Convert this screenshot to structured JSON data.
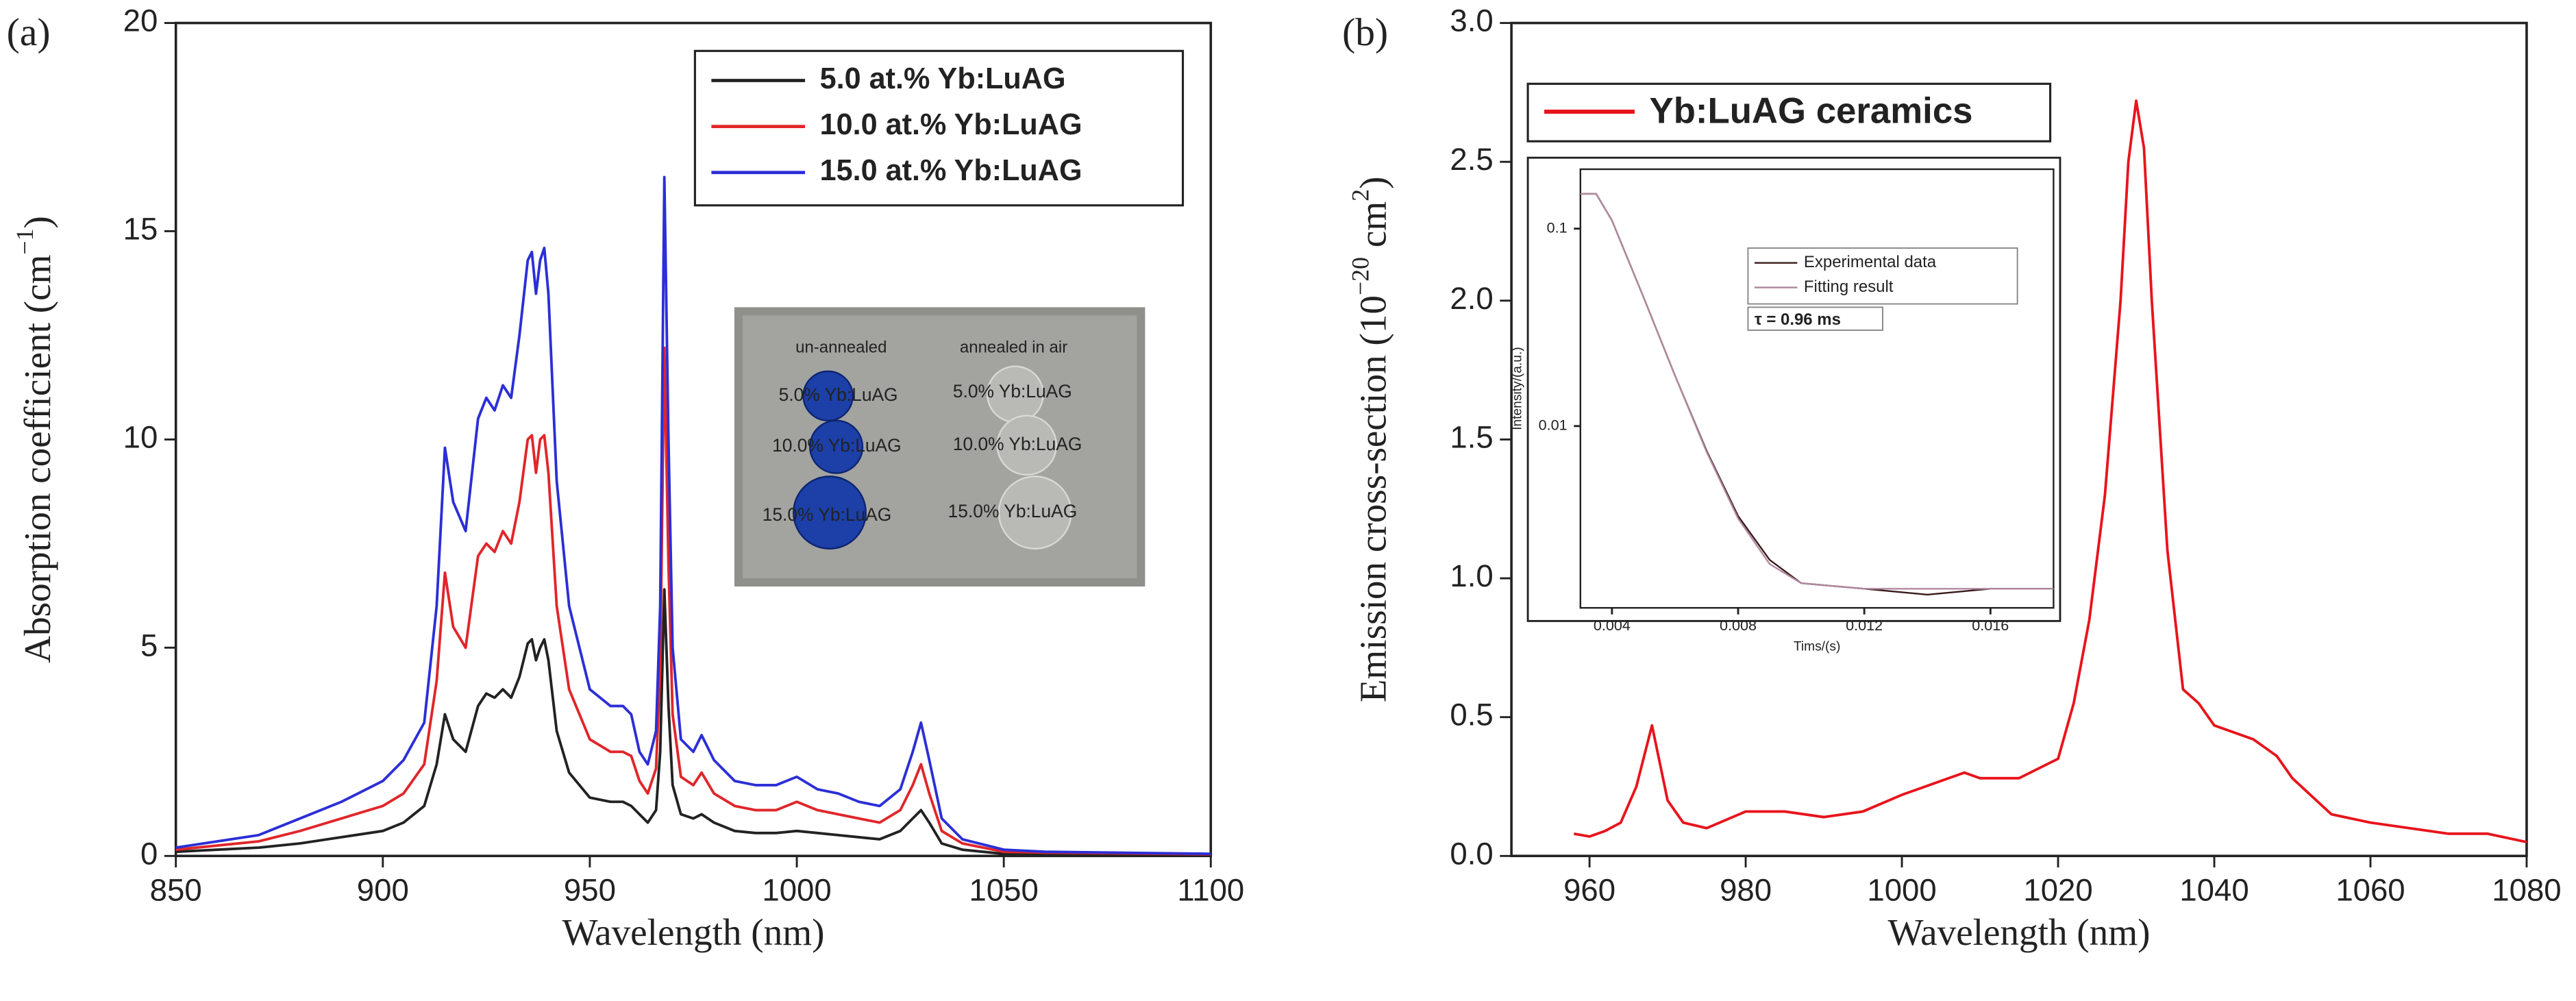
{
  "chart_data": [
    {
      "type": "line",
      "panel_label": "(a)",
      "xlabel": "Wavelength (nm)",
      "ylabel": [
        "Absorption coefficient (cm",
        "−1",
        ")"
      ],
      "xlim": [
        850,
        1100
      ],
      "xticks": [
        850,
        900,
        950,
        1000,
        1050,
        1100
      ],
      "ylim": [
        0,
        20
      ],
      "yticks": [
        0,
        5,
        10,
        15,
        20
      ],
      "legend": "upper right",
      "x": [
        850,
        870,
        880,
        890,
        900,
        905,
        910,
        913,
        915,
        917,
        920,
        923,
        925,
        927,
        929,
        931,
        933,
        935,
        936,
        937,
        938,
        939,
        940,
        942,
        945,
        950,
        955,
        958,
        960,
        962,
        964,
        966,
        967,
        968,
        969,
        970,
        972,
        975,
        977,
        980,
        985,
        990,
        995,
        1000,
        1005,
        1010,
        1015,
        1020,
        1025,
        1028,
        1030,
        1032,
        1035,
        1040,
        1050,
        1060,
        1100
      ],
      "series": [
        {
          "name": "5.0 at.% Yb:LuAG",
          "color": "#222222",
          "values": [
            0.1,
            0.2,
            0.3,
            0.45,
            0.6,
            0.8,
            1.2,
            2.2,
            3.4,
            2.8,
            2.5,
            3.6,
            3.9,
            3.8,
            4,
            3.8,
            4.3,
            5.1,
            5.2,
            4.7,
            5,
            5.2,
            4.7,
            3,
            2,
            1.4,
            1.3,
            1.3,
            1.2,
            1,
            0.8,
            1.1,
            2.5,
            6.4,
            3.6,
            1.7,
            1,
            0.9,
            1,
            0.8,
            0.6,
            0.55,
            0.55,
            0.6,
            0.55,
            0.5,
            0.45,
            0.4,
            0.6,
            0.9,
            1.1,
            0.8,
            0.3,
            0.15,
            0.05,
            0.04,
            0.02
          ]
        },
        {
          "name": "10.0 at.% Yb:LuAG",
          "color": "#e0262a",
          "values": [
            0.15,
            0.35,
            0.6,
            0.9,
            1.2,
            1.5,
            2.2,
            4.2,
            6.8,
            5.5,
            5,
            7.2,
            7.5,
            7.3,
            7.8,
            7.5,
            8.5,
            10,
            10.1,
            9.2,
            10,
            10.1,
            9.2,
            6,
            4,
            2.8,
            2.5,
            2.5,
            2.4,
            1.8,
            1.5,
            2.1,
            4.5,
            12.2,
            7,
            3.4,
            1.9,
            1.7,
            2,
            1.5,
            1.2,
            1.1,
            1.1,
            1.3,
            1.1,
            1,
            0.9,
            0.8,
            1.1,
            1.7,
            2.2,
            1.5,
            0.6,
            0.3,
            0.1,
            0.08,
            0.04
          ]
        },
        {
          "name": "15.0 at.% Yb:LuAG",
          "color": "#2b2fd6",
          "values": [
            0.2,
            0.5,
            0.9,
            1.3,
            1.8,
            2.3,
            3.2,
            6,
            9.8,
            8.5,
            7.8,
            10.5,
            11,
            10.7,
            11.3,
            11,
            12.5,
            14.3,
            14.5,
            13.5,
            14.3,
            14.6,
            13.5,
            9,
            6,
            4,
            3.6,
            3.6,
            3.4,
            2.5,
            2.2,
            3,
            6,
            16.3,
            10,
            5,
            2.8,
            2.5,
            2.9,
            2.3,
            1.8,
            1.7,
            1.7,
            1.9,
            1.6,
            1.5,
            1.3,
            1.2,
            1.6,
            2.5,
            3.2,
            2.3,
            0.9,
            0.4,
            0.15,
            0.1,
            0.05
          ]
        }
      ],
      "inset_photo": {
        "headers": [
          "un-annealed",
          "annealed in air"
        ],
        "left_labels": [
          "5.0% Yb:LuAG",
          "10.0% Yb:LuAG",
          "15.0% Yb:LuAG"
        ],
        "right_labels": [
          "5.0% Yb:LuAG",
          "10.0% Yb:LuAG",
          "15.0% Yb:LuAG"
        ]
      }
    },
    {
      "type": "line",
      "panel_label": "(b)",
      "xlabel": "Wavelength (nm)",
      "ylabel": [
        "Emission cross-section (10",
        "−20",
        " cm",
        "2",
        ")"
      ],
      "xlim": [
        950,
        1080
      ],
      "xticks": [
        960,
        980,
        1000,
        1020,
        1040,
        1060,
        1080
      ],
      "ylim": [
        0,
        3.0
      ],
      "yticks": [
        {
          "value": 0,
          "label": "0.0"
        },
        0.5,
        {
          "value": 1,
          "label": "1.0"
        },
        1.5,
        {
          "value": 2,
          "label": "2.0"
        },
        2.5,
        {
          "value": 3,
          "label": "3.0"
        }
      ],
      "legend": "upper left",
      "x": [
        958,
        960,
        962,
        964,
        966,
        968,
        970,
        972,
        975,
        980,
        985,
        990,
        995,
        1000,
        1005,
        1008,
        1010,
        1015,
        1020,
        1022,
        1024,
        1026,
        1028,
        1029,
        1030,
        1031,
        1032,
        1034,
        1036,
        1038,
        1040,
        1045,
        1048,
        1050,
        1055,
        1060,
        1065,
        1070,
        1075,
        1080
      ],
      "series": [
        {
          "name": "Yb:LuAG ceramics",
          "color": "#e8141c",
          "values": [
            0.08,
            0.07,
            0.09,
            0.12,
            0.25,
            0.47,
            0.2,
            0.12,
            0.1,
            0.16,
            0.16,
            0.14,
            0.16,
            0.22,
            0.27,
            0.3,
            0.28,
            0.28,
            0.35,
            0.55,
            0.85,
            1.3,
            2.0,
            2.5,
            2.72,
            2.55,
            2.0,
            1.1,
            0.6,
            0.55,
            0.47,
            0.42,
            0.36,
            0.28,
            0.15,
            0.12,
            0.1,
            0.08,
            0.08,
            0.05
          ]
        }
      ]
    },
    {
      "type": "line",
      "xlabel": "Tims/(s)",
      "ylabel": [
        "Intensity/(a.u.)"
      ],
      "log_y": true,
      "xlim": [
        0.003,
        0.018
      ],
      "xticks": [
        0.004,
        0.008,
        0.012,
        0.016
      ],
      "ylim": [
        0.0012,
        0.2
      ],
      "yticks": [
        0.01,
        0.1
      ],
      "legend": "upper right",
      "annotation": "τ = 0.96 ms",
      "x": [
        0.003,
        0.0035,
        0.004,
        0.005,
        0.006,
        0.007,
        0.008,
        0.009,
        0.01,
        0.012,
        0.014,
        0.016,
        0.018
      ],
      "series": [
        {
          "name": "Experimental data",
          "color": "#3a1a1a",
          "values": [
            0.15,
            0.15,
            0.11,
            0.045,
            0.018,
            0.0075,
            0.0035,
            0.0021,
            0.0016,
            0.0015,
            0.0014,
            0.0015,
            0.0015
          ]
        },
        {
          "name": "Fitting result",
          "color": "#b08aa0",
          "values": [
            0.15,
            0.15,
            0.11,
            0.045,
            0.018,
            0.0074,
            0.0034,
            0.002,
            0.0016,
            0.0015,
            0.0015,
            0.0015,
            0.0015
          ]
        }
      ]
    }
  ]
}
